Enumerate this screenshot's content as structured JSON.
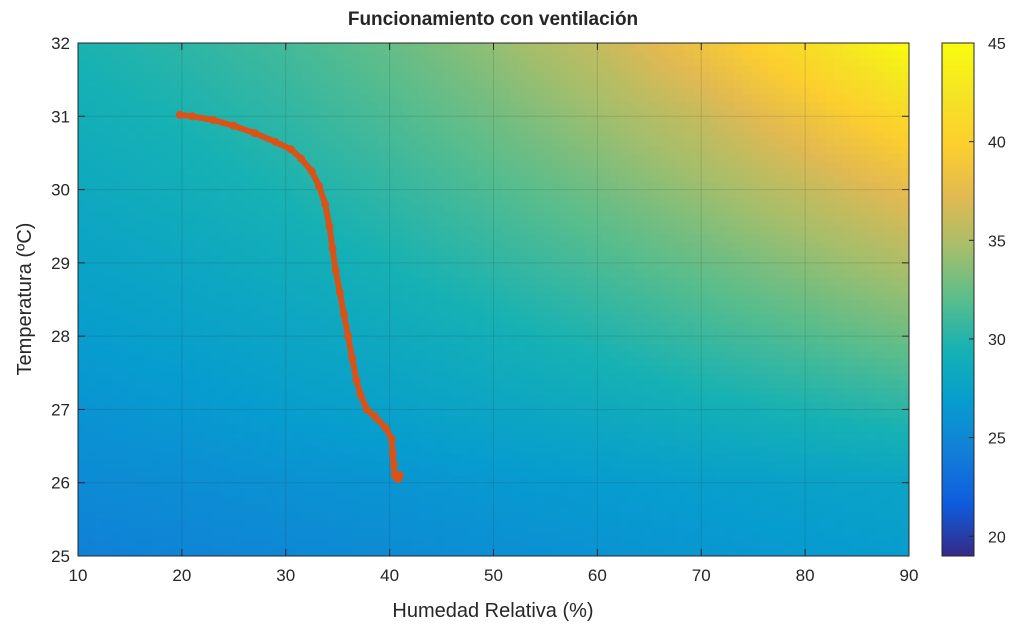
{
  "chart_data": {
    "type": "heatmap",
    "title": "Funcionamiento con ventilación",
    "xlabel": "Humedad Relativa (%)",
    "ylabel": "Temperatura (ºC)",
    "xlim": [
      10,
      90
    ],
    "ylim": [
      25,
      32
    ],
    "x_ticks": [
      10,
      20,
      30,
      40,
      50,
      60,
      70,
      80,
      90
    ],
    "y_ticks": [
      25,
      26,
      27,
      28,
      29,
      30,
      31,
      32
    ],
    "grid": true,
    "colorbar": {
      "range": [
        19,
        45
      ],
      "ticks": [
        20,
        25,
        30,
        35,
        40,
        45
      ],
      "colormap": "parula",
      "location": "right"
    },
    "surface_samples": {
      "x": [
        10,
        20,
        30,
        40,
        50,
        60,
        70,
        80,
        90
      ],
      "y": [
        25,
        26,
        27,
        28,
        29,
        30,
        31,
        32
      ],
      "z": [
        [
          24.5,
          24.8,
          25.1,
          25.4,
          25.7,
          26.0,
          26.3,
          26.6,
          26.9
        ],
        [
          25.3,
          25.6,
          25.9,
          26.2,
          26.5,
          26.8,
          27.1,
          27.4,
          27.7
        ],
        [
          26.1,
          26.5,
          27.0,
          27.4,
          27.9,
          28.4,
          29.0,
          29.6,
          30.2
        ],
        [
          26.9,
          27.3,
          27.8,
          28.4,
          29.1,
          29.9,
          30.8,
          31.7,
          32.7
        ],
        [
          27.6,
          28.1,
          28.7,
          29.5,
          30.4,
          31.4,
          32.5,
          33.7,
          35.0
        ],
        [
          28.3,
          28.9,
          29.6,
          30.5,
          31.6,
          32.8,
          34.2,
          35.8,
          37.6
        ],
        [
          29.0,
          29.6,
          30.4,
          31.5,
          32.8,
          34.3,
          36.0,
          38.4,
          41.0
        ],
        [
          29.6,
          30.3,
          31.2,
          32.4,
          34.0,
          35.9,
          38.5,
          41.5,
          45.0
        ]
      ]
    },
    "series": [
      {
        "color": "#d95319",
        "x": [
          19.8,
          21,
          23,
          25,
          27,
          29,
          30.5,
          31.5,
          32.5,
          33.2,
          33.8,
          34.2,
          34.5,
          34.8,
          35.2,
          35.6,
          36.0,
          36.4,
          36.8,
          37.2,
          37.8,
          38.6,
          39.6,
          40.2,
          40.3,
          40.4,
          40.5,
          40.8,
          41.0
        ],
        "y": [
          31.02,
          31.0,
          30.95,
          30.87,
          30.77,
          30.65,
          30.55,
          30.42,
          30.25,
          30.05,
          29.8,
          29.5,
          29.2,
          28.9,
          28.6,
          28.3,
          28.0,
          27.7,
          27.4,
          27.2,
          27.0,
          26.9,
          26.75,
          26.6,
          26.4,
          26.25,
          26.1,
          26.05,
          26.1
        ]
      }
    ]
  }
}
